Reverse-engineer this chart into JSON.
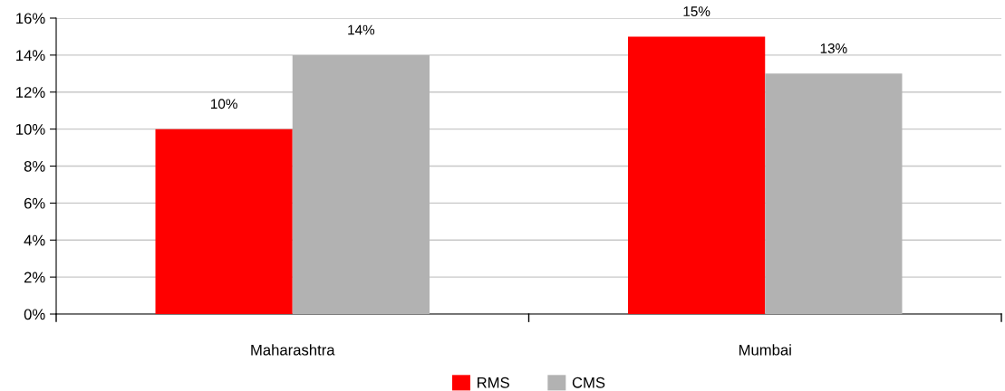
{
  "chart_data": {
    "type": "bar",
    "categories": [
      "Maharashtra",
      "Mumbai"
    ],
    "series": [
      {
        "name": "RMS",
        "color": "#ff0000",
        "values": [
          10,
          15
        ],
        "value_labels": [
          "10%",
          "15%"
        ]
      },
      {
        "name": "CMS",
        "color": "#b2b2b2",
        "values": [
          14,
          13
        ],
        "value_labels": [
          "14%",
          "13%"
        ]
      }
    ],
    "ylim": [
      0,
      16
    ],
    "yticks": [
      {
        "value": 0,
        "label": "0%"
      },
      {
        "value": 2,
        "label": "2%"
      },
      {
        "value": 4,
        "label": "4%"
      },
      {
        "value": 6,
        "label": "6%"
      },
      {
        "value": 8,
        "label": "8%"
      },
      {
        "value": 10,
        "label": "10%"
      },
      {
        "value": 12,
        "label": "12%"
      },
      {
        "value": 14,
        "label": "14%"
      },
      {
        "value": 16,
        "label": "16%"
      }
    ],
    "grid": "y",
    "legend": "bottom"
  }
}
